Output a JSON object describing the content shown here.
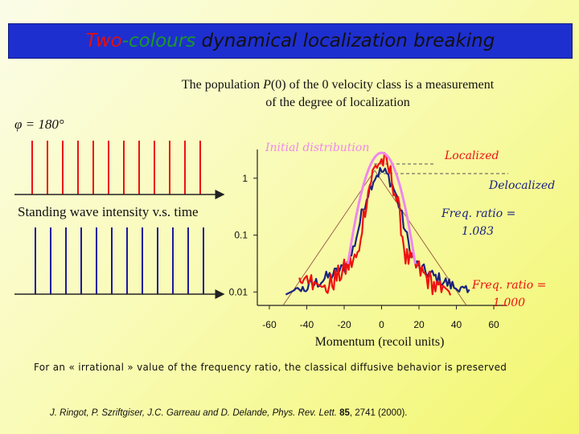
{
  "title": {
    "word1": "Two",
    "word2": "-colours",
    "rest": " dynamical localization breaking"
  },
  "subtitle": {
    "pre": "The population ",
    "symbol": "P",
    "arg": "(0)",
    "post": " of the 0 velocity class is a measurement",
    "line2": "of the degree of localization"
  },
  "phi_label": "φ = 180°",
  "standing_wave_label": "Standing wave intensity v.s. time",
  "footnote": "For an « irrational » value of the frequency ratio, the classical diffusive behavior is preserved",
  "citation": {
    "authors": "J. Ringot, P. Szriftgiser, J.C. Garreau and D. Delande, ",
    "journal": "Phys. Rev. Lett.",
    "volume": "85",
    "rest": ", 2741 (2000)."
  },
  "colors": {
    "initial": "#ee88ee",
    "localized": "#ee1111",
    "delocalized": "#1a237e",
    "pulse_red": "#ee1111",
    "pulse_blue": "#1a1aa0"
  },
  "pulses": {
    "red_count": 12,
    "blue_count": 12
  },
  "chart_data": {
    "type": "line",
    "xlabel": "Momentum (recoil units)",
    "ylabel": "",
    "x_ticks": [
      -60,
      -40,
      -20,
      0,
      20,
      40,
      60
    ],
    "y_scale": "log",
    "y_ticks": [
      {
        "value": 1,
        "label": "1"
      },
      {
        "value": 0.1,
        "label": "0.1"
      },
      {
        "value": 0.01,
        "label": "0.01"
      }
    ],
    "xlim": [
      -66,
      66
    ],
    "ylim": [
      0.006,
      3.2
    ],
    "grid": false,
    "series": [
      {
        "name": "Initial distribution",
        "color": "#ee88ee",
        "peak": 2.8,
        "profile": "gaussian",
        "sigma": 6.0,
        "points": []
      },
      {
        "name": "Localized",
        "color": "#ee1111",
        "peak": 2.0,
        "profile": "exp-center",
        "points": []
      },
      {
        "name": "Delocalized",
        "color": "#1a237e",
        "peak": 1.25,
        "profile": "broad",
        "points": []
      }
    ],
    "annotations": [
      {
        "text": "Initial distribution",
        "color": "#ee88ee"
      },
      {
        "text": "Localized",
        "color": "#ee1111"
      },
      {
        "text": "Delocalized",
        "color": "#1a237e"
      },
      {
        "text": "Freq. ratio = 1.083",
        "color": "#1a237e"
      },
      {
        "text": "Freq. ratio = 1.000",
        "color": "#ee1111"
      }
    ]
  }
}
